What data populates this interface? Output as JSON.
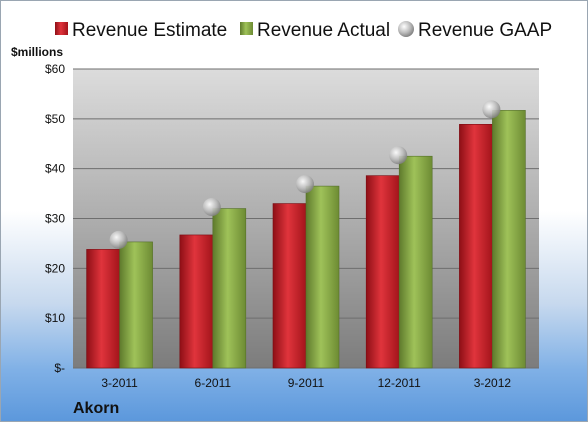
{
  "company": "Akorn",
  "chart_data": {
    "type": "bar",
    "categories": [
      "3-2011",
      "6-2011",
      "9-2011",
      "12-2011",
      "3-2012"
    ],
    "series": [
      {
        "name": "Revenue Estimate",
        "values": [
          23.8,
          26.7,
          33.0,
          38.6,
          48.9
        ],
        "color": "#d0202a"
      },
      {
        "name": "Revenue Actual",
        "values": [
          25.3,
          32.0,
          36.5,
          42.5,
          51.7
        ],
        "color": "#8db04a"
      },
      {
        "name": "Revenue GAAP",
        "values": [
          25.7,
          32.3,
          36.9,
          42.7,
          51.9
        ],
        "color": "#b4b4b4",
        "marker": "sphere"
      }
    ],
    "ylabel": "$millions",
    "ylim": [
      0,
      60
    ],
    "y_ticks": [
      0,
      10,
      20,
      30,
      40,
      50,
      60
    ],
    "y_tick_labels": [
      "$-",
      "$10",
      "$20",
      "$30",
      "$40",
      "$50",
      "$60"
    ],
    "grid": true,
    "legend_position": "top"
  }
}
